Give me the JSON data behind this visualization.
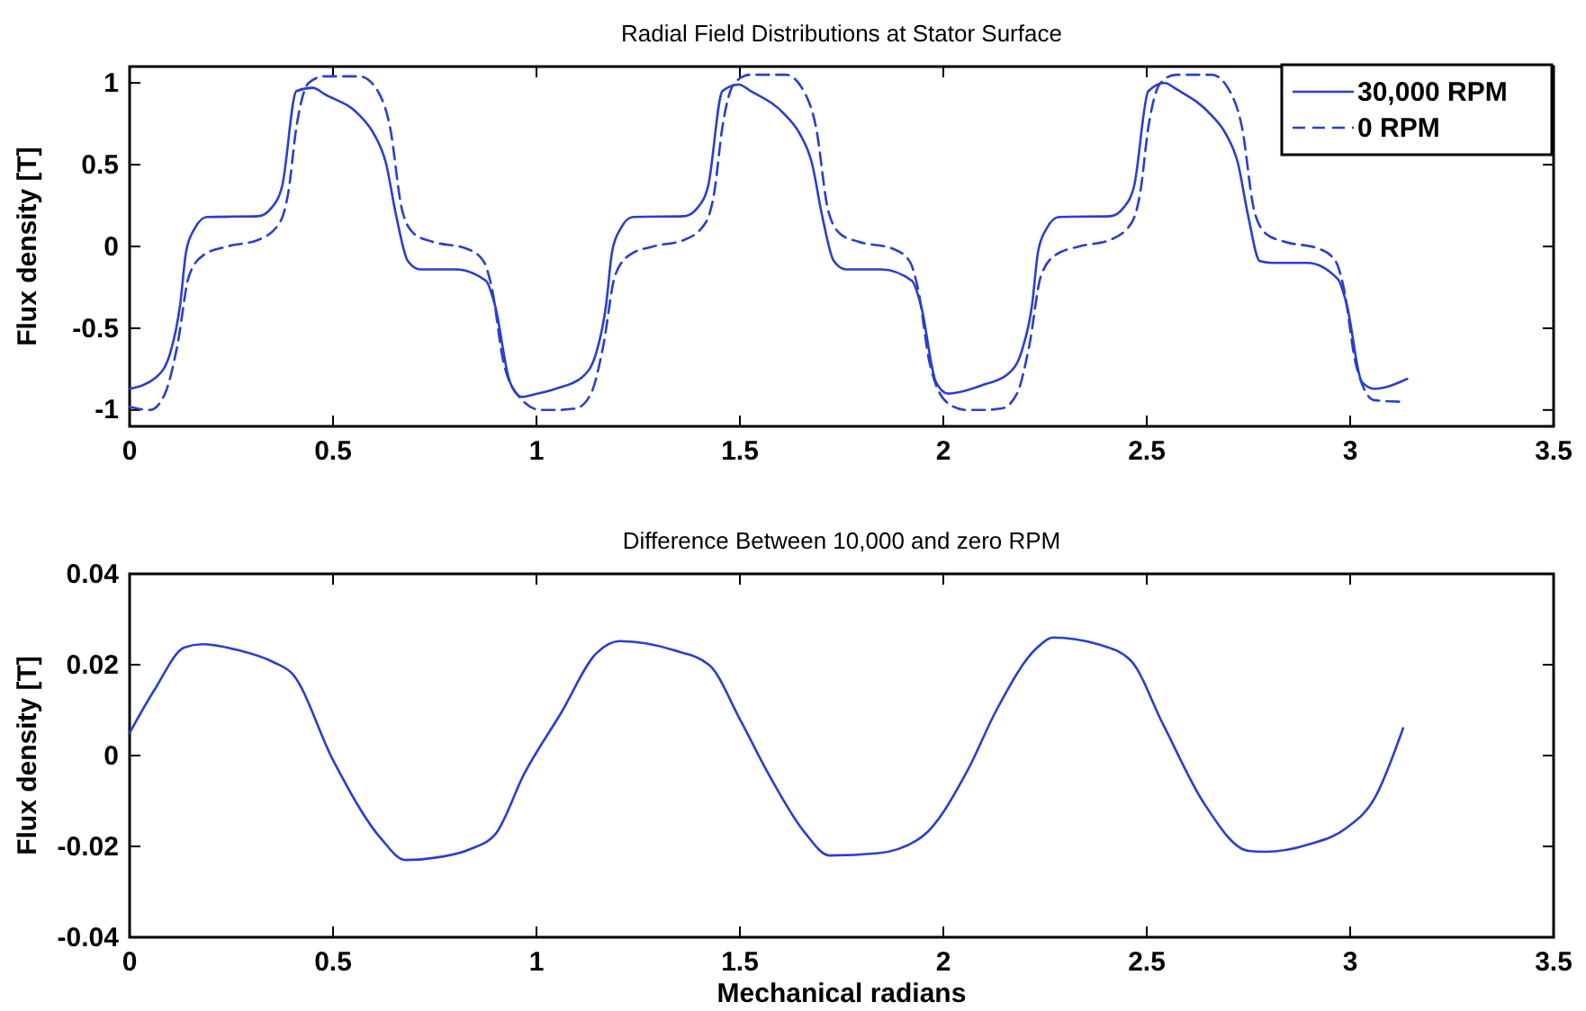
{
  "chart_data": [
    {
      "type": "line",
      "title": "Radial Field Distributions at Stator Surface",
      "ylabel": "Flux density [T]",
      "xlim": [
        0,
        3.5
      ],
      "ylim": [
        -1.1,
        1.1
      ],
      "xticks": [
        0,
        0.5,
        1,
        1.5,
        2,
        2.5,
        3,
        3.5
      ],
      "yticks": [
        -1,
        -0.5,
        0,
        0.5,
        1
      ],
      "legend": "top right",
      "grid": false,
      "series": [
        {
          "name": "30,000 RPM",
          "color": "#2a3fcc",
          "line_style": "solid",
          "x": [
            0,
            0.065,
            0.1,
            0.124,
            0.139,
            0.16,
            0.19,
            0.316,
            0.35,
            0.375,
            0.41,
            0.45,
            0.48,
            0.566,
            0.6,
            0.63,
            0.655,
            0.684,
            0.713,
            0.8,
            0.876,
            0.898,
            0.935,
            0.965,
            0.994,
            1.047,
            1.112,
            1.147,
            1.171,
            1.186,
            1.207,
            1.237,
            1.363,
            1.397,
            1.422,
            1.457,
            1.497,
            1.527,
            1.613,
            1.647,
            1.677,
            1.702,
            1.731,
            1.76,
            1.847,
            1.923,
            1.945,
            1.982,
            2.012,
            2.041,
            2.094,
            2.159,
            2.194,
            2.218,
            2.233,
            2.254,
            2.284,
            2.41,
            2.444,
            2.469,
            2.504,
            2.544,
            2.574,
            2.66,
            2.694,
            2.724,
            2.749,
            2.778,
            2.807,
            2.894,
            2.97,
            2.992,
            3.029,
            3.06,
            3.14
          ],
          "values": [
            -0.87,
            -0.8,
            -0.65,
            -0.36,
            -0.03,
            0.11,
            0.18,
            0.185,
            0.24,
            0.37,
            0.95,
            0.97,
            0.93,
            0.8,
            0.69,
            0.51,
            0.19,
            -0.09,
            -0.14,
            -0.14,
            -0.21,
            -0.36,
            -0.83,
            -0.92,
            -0.905,
            -0.87,
            -0.8,
            -0.65,
            -0.36,
            -0.03,
            0.11,
            0.18,
            0.185,
            0.24,
            0.37,
            0.95,
            0.99,
            0.95,
            0.8,
            0.69,
            0.51,
            0.19,
            -0.09,
            -0.14,
            -0.14,
            -0.21,
            -0.36,
            -0.83,
            -0.9,
            -0.89,
            -0.85,
            -0.78,
            -0.63,
            -0.36,
            -0.03,
            0.11,
            0.18,
            0.185,
            0.24,
            0.37,
            0.95,
            1.0,
            0.96,
            0.8,
            0.69,
            0.51,
            0.19,
            -0.09,
            -0.1,
            -0.1,
            -0.2,
            -0.36,
            -0.83,
            -0.87,
            -0.81
          ]
        },
        {
          "name": "0 RPM",
          "color": "#2a3fcc",
          "line_style": "dashed",
          "x": [
            0,
            0.05,
            0.087,
            0.117,
            0.146,
            0.183,
            0.24,
            0.316,
            0.37,
            0.39,
            0.41,
            0.44,
            0.478,
            0.566,
            0.61,
            0.64,
            0.67,
            0.7,
            0.743,
            0.83,
            0.87,
            0.89,
            0.92,
            0.965,
            1.01,
            1.047,
            1.097,
            1.134,
            1.164,
            1.193,
            1.23,
            1.287,
            1.363,
            1.417,
            1.437,
            1.457,
            1.487,
            1.525,
            1.613,
            1.657,
            1.687,
            1.717,
            1.747,
            1.79,
            1.877,
            1.917,
            1.937,
            1.967,
            2.012,
            2.057,
            2.094,
            2.144,
            2.181,
            2.211,
            2.24,
            2.277,
            2.334,
            2.41,
            2.464,
            2.484,
            2.504,
            2.534,
            2.572,
            2.66,
            2.704,
            2.734,
            2.764,
            2.794,
            2.837,
            2.924,
            2.964,
            2.984,
            3.014,
            3.059,
            3.13
          ],
          "values": [
            -0.98,
            -1.0,
            -0.9,
            -0.61,
            -0.18,
            -0.05,
            0.0,
            0.04,
            0.15,
            0.33,
            0.73,
            1.0,
            1.04,
            1.04,
            0.95,
            0.73,
            0.22,
            0.076,
            0.03,
            -0.015,
            -0.09,
            -0.25,
            -0.72,
            -0.94,
            -1.0,
            -1.0,
            -0.99,
            -0.9,
            -0.61,
            -0.18,
            -0.05,
            0.0,
            0.04,
            0.15,
            0.33,
            0.73,
            1.0,
            1.05,
            1.05,
            0.95,
            0.73,
            0.22,
            0.076,
            0.03,
            -0.015,
            -0.09,
            -0.25,
            -0.72,
            -0.96,
            -1.0,
            -1.0,
            -0.99,
            -0.9,
            -0.61,
            -0.18,
            -0.05,
            0.0,
            0.04,
            0.15,
            0.33,
            0.73,
            1.0,
            1.05,
            1.05,
            0.95,
            0.73,
            0.22,
            0.076,
            0.03,
            -0.015,
            -0.09,
            -0.25,
            -0.72,
            -0.94,
            -0.95
          ]
        }
      ]
    },
    {
      "type": "line",
      "title": "Difference Between 10,000 and zero RPM",
      "xlabel": "Mechanical radians",
      "ylabel": "Flux density [T]",
      "xlim": [
        0,
        3.5
      ],
      "ylim": [
        -0.04,
        0.04
      ],
      "xticks": [
        0,
        0.5,
        1,
        1.5,
        2,
        2.5,
        3,
        3.5
      ],
      "yticks": [
        -0.04,
        -0.02,
        0,
        0.02,
        0.04
      ],
      "grid": false,
      "series": [
        {
          "color": "#2a3fcc",
          "line_style": "solid",
          "x": [
            0,
            0.062,
            0.135,
            0.179,
            0.267,
            0.355,
            0.4,
            0.5,
            0.62,
            0.677,
            0.75,
            0.84,
            0.9,
            0.97,
            1.06,
            1.147,
            1.205,
            1.337,
            1.425,
            1.5,
            1.57,
            1.66,
            1.72,
            1.84,
            1.95,
            2.06,
            2.13,
            2.23,
            2.27,
            2.38,
            2.46,
            2.54,
            2.64,
            2.75,
            2.79,
            2.9,
            2.99,
            3.06,
            3.13
          ],
          "values": [
            0.005,
            0.0146,
            0.0238,
            0.0245,
            0.0232,
            0.0205,
            0.018,
            -0.001,
            -0.0185,
            -0.023,
            -0.0225,
            -0.0205,
            -0.0172,
            -0.004,
            0.0093,
            0.0225,
            0.0252,
            0.0232,
            0.0199,
            0.008,
            -0.004,
            -0.017,
            -0.022,
            -0.0215,
            -0.0177,
            -0.0032,
            0.0099,
            0.0237,
            0.026,
            0.0245,
            0.021,
            0.0069,
            -0.0104,
            -0.021,
            -0.0212,
            -0.0195,
            -0.016,
            -0.0094,
            0.006
          ]
        }
      ]
    }
  ]
}
